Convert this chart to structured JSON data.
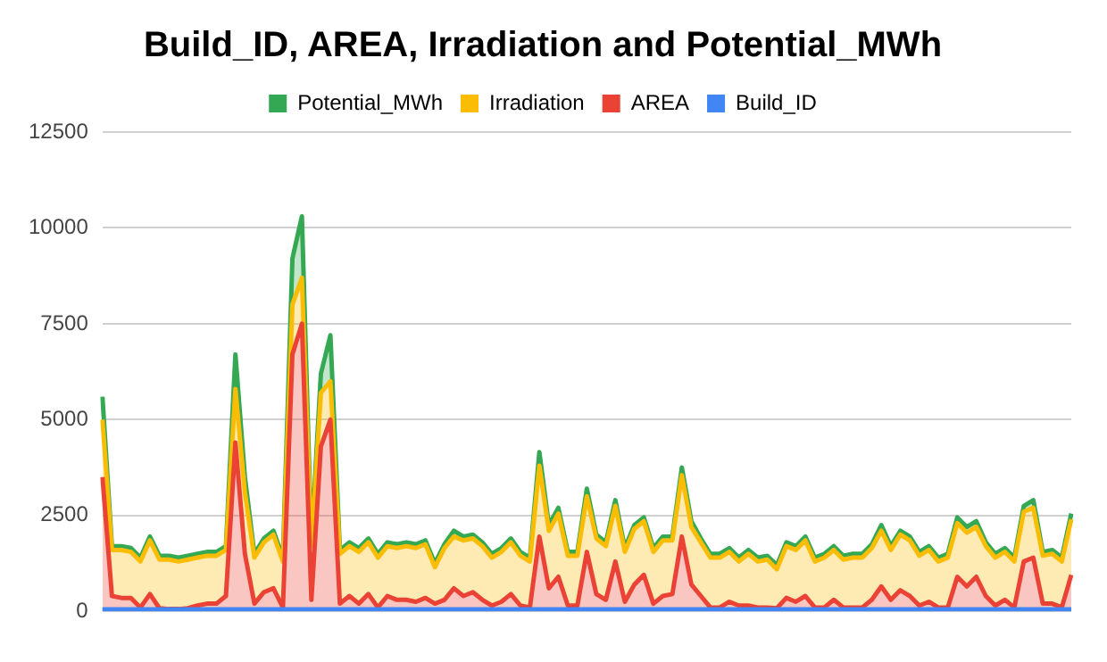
{
  "chart_data": {
    "type": "area",
    "title": "Build_ID, AREA, Irradiation and Potential_MWh",
    "stacked": true,
    "legend": "top",
    "grid": "y",
    "ylim": [
      0,
      12500
    ],
    "yticks": [
      0,
      2500,
      5000,
      7500,
      10000,
      12500
    ],
    "categories": [
      null,
      null,
      null,
      null,
      null,
      null,
      null,
      null,
      null,
      null,
      null,
      null,
      null,
      null,
      null,
      null,
      null,
      null,
      null,
      null,
      null,
      null,
      null,
      null,
      null,
      null,
      null,
      null,
      null,
      null,
      null,
      null,
      null,
      null,
      null,
      null,
      null,
      null,
      null,
      null,
      null,
      null,
      null,
      null,
      null,
      null,
      null,
      null,
      null,
      null,
      null,
      null,
      null,
      null,
      null,
      null,
      null,
      null,
      null,
      null,
      null,
      null,
      null,
      null,
      null,
      null,
      null,
      null,
      null,
      null,
      null,
      null,
      null,
      null,
      null,
      null,
      null,
      null,
      null,
      null,
      null,
      null,
      null,
      null,
      null,
      null,
      null,
      null,
      null,
      null,
      null,
      null,
      null,
      null,
      null,
      null,
      null,
      null,
      null,
      null,
      null,
      null,
      null
    ],
    "series": [
      {
        "name": "Build_ID",
        "color": "#4285f4",
        "values": [
          50,
          50,
          50,
          50,
          50,
          50,
          50,
          50,
          50,
          50,
          50,
          50,
          50,
          50,
          50,
          50,
          50,
          50,
          50,
          50,
          50,
          50,
          50,
          50,
          50,
          50,
          50,
          50,
          50,
          50,
          50,
          50,
          50,
          50,
          50,
          50,
          50,
          50,
          50,
          50,
          50,
          50,
          50,
          50,
          50,
          50,
          50,
          50,
          50,
          50,
          50,
          50,
          50,
          50,
          50,
          50,
          50,
          50,
          50,
          50,
          50,
          50,
          50,
          50,
          50,
          50,
          50,
          50,
          50,
          50,
          50,
          50,
          50,
          50,
          50,
          50,
          50,
          50,
          50,
          50,
          50,
          50,
          50,
          50,
          50,
          50,
          50,
          50,
          50,
          50,
          50,
          50,
          50,
          50,
          50,
          50,
          50,
          50,
          50,
          50,
          50,
          50,
          50
        ]
      },
      {
        "name": "AREA",
        "color": "#ea4335",
        "values": [
          3450,
          350,
          300,
          300,
          50,
          400,
          30,
          10,
          10,
          30,
          100,
          150,
          150,
          350,
          4350,
          1450,
          150,
          450,
          550,
          50,
          6650,
          7450,
          250,
          4250,
          4950,
          150,
          350,
          150,
          400,
          50,
          350,
          250,
          250,
          200,
          300,
          150,
          250,
          550,
          350,
          450,
          250,
          100,
          200,
          400,
          100,
          50,
          1900,
          550,
          850,
          100,
          100,
          1500,
          400,
          250,
          1250,
          200,
          650,
          900,
          150,
          350,
          400,
          1900,
          650,
          350,
          50,
          50,
          200,
          100,
          100,
          50,
          50,
          30,
          300,
          200,
          350,
          50,
          50,
          250,
          50,
          50,
          50,
          250,
          600,
          250,
          500,
          350,
          100,
          200,
          50,
          50,
          850,
          600,
          850,
          350,
          100,
          250,
          50,
          1250,
          1350,
          150,
          150,
          50,
          900
        ]
      },
      {
        "name": "Irradiation",
        "color": "#fbbc04",
        "values": [
          1500,
          1200,
          1250,
          1200,
          1200,
          1400,
          1270,
          1290,
          1240,
          1270,
          1250,
          1250,
          1250,
          1200,
          1400,
          1600,
          1200,
          1300,
          1400,
          1200,
          1300,
          1200,
          1400,
          1400,
          1000,
          1300,
          1300,
          1350,
          1350,
          1300,
          1300,
          1350,
          1400,
          1400,
          1400,
          950,
          1350,
          1350,
          1450,
          1400,
          1400,
          1250,
          1300,
          1350,
          1300,
          1200,
          1850,
          1500,
          1650,
          1300,
          1300,
          1450,
          1450,
          1400,
          1450,
          1300,
          1450,
          1400,
          1350,
          1450,
          1400,
          1600,
          1500,
          1400,
          1300,
          1300,
          1300,
          1150,
          1350,
          1200,
          1250,
          1020,
          1350,
          1350,
          1450,
          1200,
          1300,
          1300,
          1250,
          1300,
          1300,
          1350,
          1450,
          1300,
          1450,
          1450,
          1300,
          1350,
          1200,
          1300,
          1400,
          1400,
          1300,
          1300,
          1250,
          1250,
          1200,
          1300,
          1300,
          1250,
          1300,
          1200,
          1450
        ]
      },
      {
        "name": "Potential_MWh",
        "color": "#34a853",
        "values": [
          600,
          100,
          100,
          100,
          100,
          100,
          100,
          100,
          100,
          100,
          100,
          100,
          100,
          100,
          900,
          400,
          100,
          100,
          100,
          100,
          1200,
          1600,
          100,
          500,
          1200,
          100,
          100,
          100,
          100,
          100,
          100,
          100,
          100,
          100,
          100,
          100,
          100,
          150,
          100,
          100,
          100,
          100,
          100,
          100,
          100,
          100,
          350,
          150,
          150,
          100,
          100,
          200,
          100,
          100,
          150,
          100,
          100,
          100,
          100,
          100,
          100,
          200,
          150,
          100,
          100,
          100,
          100,
          100,
          100,
          100,
          100,
          100,
          100,
          100,
          100,
          100,
          100,
          100,
          100,
          100,
          100,
          100,
          150,
          100,
          100,
          100,
          100,
          100,
          100,
          100,
          150,
          150,
          150,
          100,
          100,
          100,
          100,
          150,
          200,
          100,
          100,
          100,
          150
        ]
      }
    ]
  }
}
